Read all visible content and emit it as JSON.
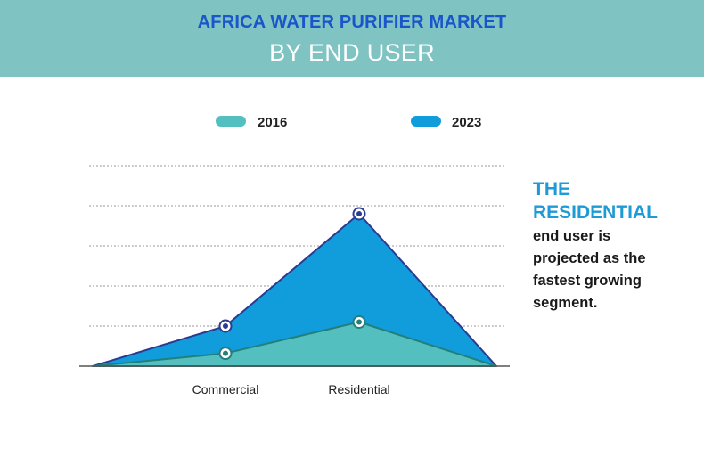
{
  "header": {
    "title_line1": "AFRICA WATER PURIFIER MARKET",
    "title_line2": "BY END USER"
  },
  "callout": {
    "highlight_line1": "THE",
    "highlight_line2": "RESIDENTIAL",
    "body_lines": [
      "end user is",
      "projected as the",
      "fastest growing",
      "segment."
    ]
  },
  "colors": {
    "banner": "#7fc3c3",
    "title_blue": "#1a55c9",
    "series_2016": "#53bfbf",
    "series_2023": "#119cdc",
    "outline_2016": "#237f7a",
    "outline_2023": "#2b3b92",
    "highlight": "#1e9ad6"
  },
  "chart_data": {
    "type": "area",
    "categories": [
      "Commercial",
      "Residential"
    ],
    "series": [
      {
        "name": "2016",
        "values": [
          0.32,
          1.1
        ]
      },
      {
        "name": "2023",
        "values": [
          1.0,
          3.8
        ]
      }
    ],
    "ylim": [
      0,
      5
    ],
    "grid": true,
    "legend_position": "top",
    "xlabel": "",
    "ylabel": ""
  }
}
